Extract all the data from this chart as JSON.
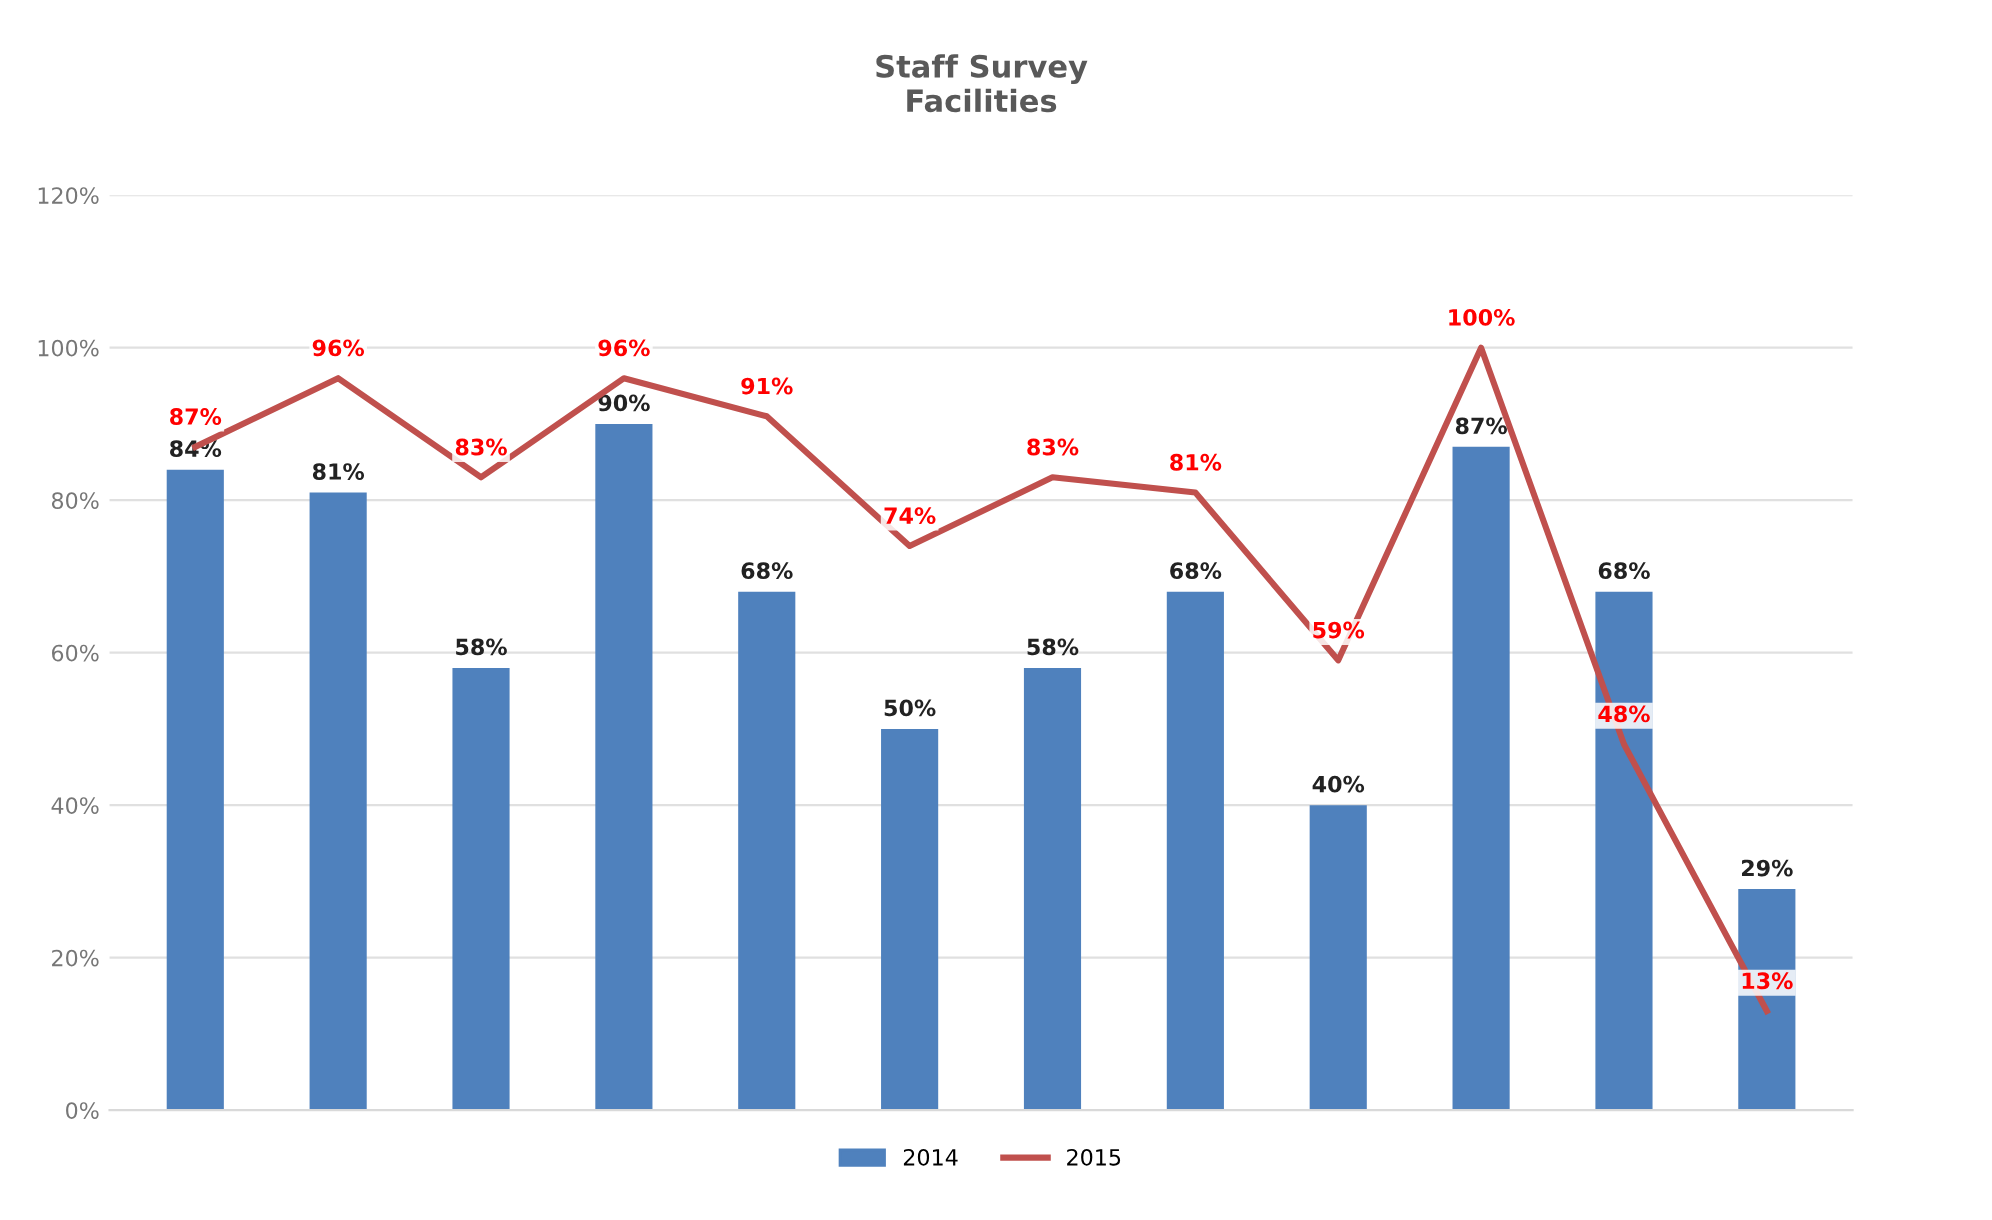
{
  "chart_data": {
    "type": "bar",
    "title": "Staff Survey\nFacilities",
    "categories": [
      null,
      null,
      null,
      null,
      null,
      null,
      null,
      null,
      null,
      null,
      null,
      null
    ],
    "series": [
      {
        "name": "2014",
        "color": "#4f81bd",
        "values": [
          84,
          81,
          58,
          90,
          68,
          50,
          58,
          68,
          40,
          87,
          68,
          29
        ],
        "value_labels": [
          "84%",
          "81%",
          "58%",
          "90%",
          "68%",
          "50%",
          "58%",
          "68%",
          "40%",
          "87%",
          "68%",
          "29%"
        ]
      },
      {
        "name": "2015",
        "type": "line",
        "color": "#c0504d",
        "values": [
          87,
          96,
          83,
          96,
          91,
          74,
          83,
          81,
          59,
          100,
          48,
          13
        ],
        "value_labels": [
          "87%",
          "96%",
          "83%",
          "96%",
          "91%",
          "74%",
          "83%",
          "81%",
          "59%",
          "100%",
          "48%",
          "13%"
        ]
      }
    ],
    "ylim": [
      0,
      120
    ],
    "yticks": [
      {
        "value": 0,
        "label": "0%"
      },
      {
        "value": 20,
        "label": "20%"
      },
      {
        "value": 40,
        "label": "40%"
      },
      {
        "value": 60,
        "label": "60%"
      },
      {
        "value": 80,
        "label": "80%"
      },
      {
        "value": 100,
        "label": "100%"
      },
      {
        "value": 120,
        "label": "120%"
      }
    ],
    "grid": "y",
    "legend": "bottom",
    "tick_labels": "y",
    "marker": "none",
    "line_style": "solid"
  }
}
